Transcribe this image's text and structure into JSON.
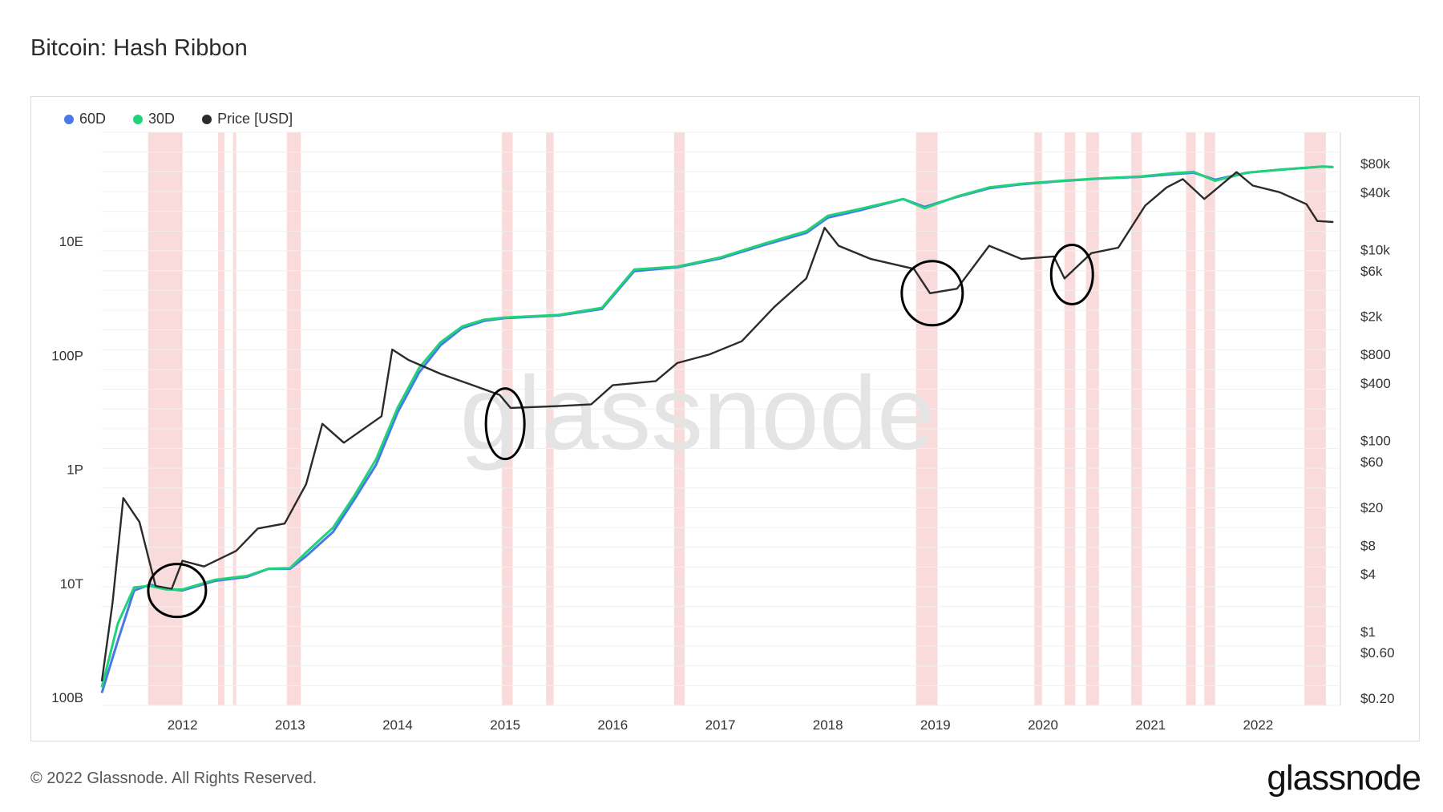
{
  "title": "Bitcoin: Hash Ribbon",
  "footer": "© 2022 Glassnode. All Rights Reserved.",
  "brand": "glassnode",
  "watermark": "glassnode",
  "colors": {
    "s60": "#4a78e8",
    "s30": "#1fd37a",
    "price": "#2b2b2b",
    "band": "#f7c3c3",
    "band_strong": "#f08a8a"
  },
  "legend": [
    {
      "name": "60D",
      "color": "#4a78e8"
    },
    {
      "name": "30D",
      "color": "#1fd37a"
    },
    {
      "name": "Price [USD]",
      "color": "#2b2b2b"
    }
  ],
  "chart_data": {
    "type": "line",
    "x_range": [
      2011.25,
      2022.75
    ],
    "x_ticks": [
      "2012",
      "2013",
      "2014",
      "2015",
      "2016",
      "2017",
      "2018",
      "2019",
      "2020",
      "2021",
      "2022"
    ],
    "left_axis": {
      "scale": "log",
      "ticks": [
        "100B",
        "10T",
        "1P",
        "100P",
        "10E"
      ],
      "unit": "H/s"
    },
    "right_axis": {
      "scale": "log",
      "ticks": [
        "$0.20",
        "$0.60",
        "$1",
        "$4",
        "$8",
        "$20",
        "$60",
        "$100",
        "$400",
        "$800",
        "$2k",
        "$6k",
        "$10k",
        "$40k",
        "$80k"
      ]
    },
    "series": [
      {
        "name": "60D",
        "axis": "left",
        "x": [
          2011.25,
          2011.4,
          2011.55,
          2011.7,
          2011.85,
          2012.0,
          2012.3,
          2012.6,
          2012.8,
          2013.0,
          2013.15,
          2013.4,
          2013.6,
          2013.8,
          2014.0,
          2014.2,
          2014.4,
          2014.6,
          2014.8,
          2015.0,
          2015.5,
          2015.9,
          2016.2,
          2016.6,
          2017.0,
          2017.4,
          2017.8,
          2018.0,
          2018.3,
          2018.7,
          2018.9,
          2019.2,
          2019.5,
          2019.8,
          2020.2,
          2020.5,
          2020.9,
          2021.2,
          2021.4,
          2021.6,
          2021.9,
          2022.2,
          2022.6,
          2022.7
        ],
        "values": [
          120000000000.0,
          1000000000000.0,
          7500000000000.0,
          9500000000000.0,
          8000000000000.0,
          7500000000000.0,
          11000000000000.0,
          13000000000000.0,
          18000000000000.0,
          18000000000000.0,
          30000000000000.0,
          80000000000000.0,
          300000000000000.0,
          1200000000000000.0,
          1e+16,
          5e+16,
          1.5e+17,
          3e+17,
          4e+17,
          4.5e+17,
          5e+17,
          6.5e+17,
          3e+18,
          3.5e+18,
          5e+18,
          8.5e+18,
          1.4e+19,
          2.6e+19,
          3.5e+19,
          5.5e+19,
          4e+19,
          6e+19,
          8.5e+19,
          1e+20,
          1.15e+20,
          1.25e+20,
          1.35e+20,
          1.5e+20,
          1.6e+20,
          1.2e+20,
          1.6e+20,
          1.8e+20,
          2.05e+20,
          2e+20
        ]
      },
      {
        "name": "30D",
        "axis": "left",
        "x": [
          2011.25,
          2011.4,
          2011.55,
          2011.7,
          2011.85,
          2012.0,
          2012.3,
          2012.6,
          2012.8,
          2013.0,
          2013.15,
          2013.4,
          2013.6,
          2013.8,
          2014.0,
          2014.2,
          2014.4,
          2014.6,
          2014.8,
          2015.0,
          2015.5,
          2015.9,
          2016.2,
          2016.6,
          2017.0,
          2017.4,
          2017.8,
          2018.0,
          2018.3,
          2018.7,
          2018.9,
          2019.2,
          2019.5,
          2019.8,
          2020.2,
          2020.5,
          2020.9,
          2021.2,
          2021.4,
          2021.6,
          2021.9,
          2022.2,
          2022.6,
          2022.7
        ],
        "values": [
          150000000000.0,
          2000000000000.0,
          8500000000000.0,
          9000000000000.0,
          7800000000000.0,
          7800000000000.0,
          11500000000000.0,
          13500000000000.0,
          18000000000000.0,
          18500000000000.0,
          35000000000000.0,
          95000000000000.0,
          350000000000000.0,
          1500000000000000.0,
          1.2e+16,
          6e+16,
          1.7e+17,
          3.2e+17,
          4.2e+17,
          4.6e+17,
          5.1e+17,
          6.8e+17,
          3.2e+18,
          3.6e+18,
          5.2e+18,
          9e+18,
          1.5e+19,
          2.8e+19,
          3.7e+19,
          5.5e+19,
          3.8e+19,
          6.1e+19,
          8.8e+19,
          1.02e+20,
          1.16e+20,
          1.26e+20,
          1.37e+20,
          1.55e+20,
          1.65e+20,
          1.15e+20,
          1.6e+20,
          1.8e+20,
          2.05e+20,
          2e+20
        ]
      },
      {
        "name": "Price [USD]",
        "axis": "right",
        "x": [
          2011.25,
          2011.35,
          2011.45,
          2011.6,
          2011.75,
          2011.9,
          2012.0,
          2012.2,
          2012.5,
          2012.7,
          2012.95,
          2013.15,
          2013.3,
          2013.5,
          2013.85,
          2013.95,
          2014.1,
          2014.4,
          2014.7,
          2014.95,
          2015.05,
          2015.5,
          2015.8,
          2016.0,
          2016.4,
          2016.6,
          2016.9,
          2017.2,
          2017.5,
          2017.8,
          2017.97,
          2018.1,
          2018.4,
          2018.8,
          2018.95,
          2019.2,
          2019.5,
          2019.8,
          2020.1,
          2020.2,
          2020.45,
          2020.7,
          2020.95,
          2021.15,
          2021.3,
          2021.5,
          2021.8,
          2021.95,
          2022.2,
          2022.45,
          2022.55,
          2022.7
        ],
        "values": [
          0.3,
          2,
          25,
          14,
          3,
          2.8,
          5.5,
          4.8,
          7,
          12,
          13.5,
          35,
          150,
          95,
          180,
          900,
          700,
          500,
          380,
          300,
          220,
          230,
          240,
          380,
          420,
          650,
          800,
          1100,
          2500,
          5000,
          17000,
          11000,
          8000,
          6300,
          3500,
          3900,
          11000,
          8000,
          8500,
          5000,
          9200,
          10500,
          29000,
          45000,
          55000,
          34000,
          65000,
          47000,
          40000,
          30000,
          20000,
          19500
        ]
      }
    ],
    "annotations": {
      "regions_description_count": 24
    }
  }
}
